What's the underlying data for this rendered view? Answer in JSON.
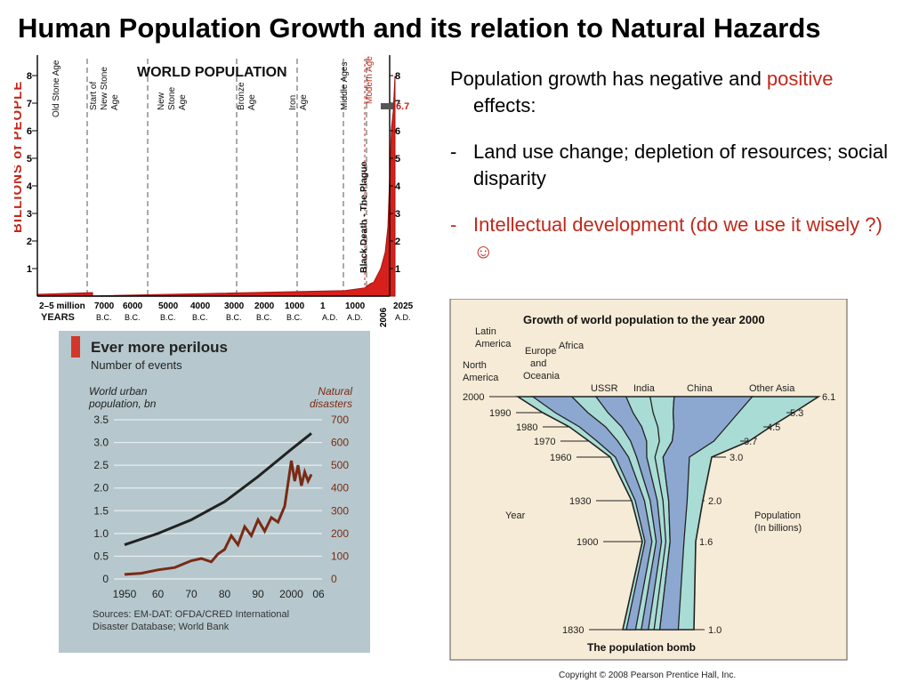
{
  "title": "Human Population Growth and its relation to Natural Hazards",
  "text": {
    "lead_part1": "Population growth has negative and ",
    "lead_part2": "positive",
    "lead_part3": " effects:",
    "item1_dash": "-",
    "item1": "Land use change; depletion of resources; social disparity",
    "item2_dash": "-",
    "item2": "Intellectual development (do we use it wisely ?) ☺"
  },
  "colors": {
    "accent": "#c0281a",
    "chart_red": "#d7201b",
    "cyan": "#a9dcd5",
    "blue": "#8ca8d0"
  },
  "world_population": {
    "title": "WORLD POPULATION",
    "ylabel_left": "BILLIONS of PEOPLE",
    "y_ticks": [
      "8",
      "7",
      "6",
      "5",
      "4",
      "3",
      "2",
      "1"
    ],
    "years_label": "YEARS",
    "eras": [
      {
        "label": "Old Stone Age"
      },
      {
        "label": "Start of New Stone Age"
      },
      {
        "label": "New Stone Age"
      },
      {
        "label": "Bronze Age"
      },
      {
        "label": "Iron Age"
      },
      {
        "label": "Middle Ages"
      },
      {
        "label": "Black Death - The Plague"
      },
      {
        "label": "Modern Age"
      }
    ],
    "x_ticks": [
      {
        "l1": "2–5 million",
        "l2": ""
      },
      {
        "l1": "7000",
        "l2": "B.C."
      },
      {
        "l1": "6000",
        "l2": "B.C."
      },
      {
        "l1": "5000",
        "l2": "B.C."
      },
      {
        "l1": "4000",
        "l2": "B.C."
      },
      {
        "l1": "3000",
        "l2": "B.C."
      },
      {
        "l1": "2000",
        "l2": "B.C."
      },
      {
        "l1": "1000",
        "l2": "B.C."
      },
      {
        "l1": "1",
        "l2": "A.D."
      },
      {
        "l1": "1000",
        "l2": "A.D."
      },
      {
        "l1": "2006",
        "l2": ""
      },
      {
        "l1": "2025",
        "l2": "A.D."
      }
    ],
    "marker_value": "6.7",
    "series": [
      {
        "year": -7000,
        "value": 0.01
      },
      {
        "year": 1,
        "value": 0.2
      },
      {
        "year": 1000,
        "value": 0.3
      },
      {
        "year": 1350,
        "value": 0.45
      },
      {
        "year": 1500,
        "value": 0.5
      },
      {
        "year": 1800,
        "value": 1.0
      },
      {
        "year": 1900,
        "value": 1.6
      },
      {
        "year": 1950,
        "value": 2.5
      },
      {
        "year": 2000,
        "value": 6.1
      },
      {
        "year": 2006,
        "value": 6.7
      },
      {
        "year": 2025,
        "value": 8.0
      }
    ]
  },
  "urban_risk": {
    "title": "Ever more perilous",
    "subtitle": "Number of events",
    "left_label_1": "World urban",
    "left_label_2": "population, bn",
    "right_label_1": "Natural",
    "right_label_2": "disasters",
    "left_ticks": [
      "3.5",
      "3.0",
      "2.5",
      "2.0",
      "1.5",
      "1.0",
      "0.5",
      "0"
    ],
    "right_ticks": [
      "700",
      "600",
      "500",
      "400",
      "300",
      "200",
      "100",
      "0"
    ],
    "x_ticks": [
      "1950",
      "60",
      "70",
      "80",
      "90",
      "2000",
      "06"
    ],
    "source_1": "Sources: EM-DAT: OFDA/CRED International",
    "source_2": "Disaster Database; World Bank",
    "urban_population_bn": [
      {
        "year": 1950,
        "value": 0.75
      },
      {
        "year": 1960,
        "value": 1.0
      },
      {
        "year": 1970,
        "value": 1.3
      },
      {
        "year": 1980,
        "value": 1.7
      },
      {
        "year": 1990,
        "value": 2.25
      },
      {
        "year": 2000,
        "value": 2.85
      },
      {
        "year": 2006,
        "value": 3.2
      }
    ],
    "natural_disasters": [
      {
        "year": 1950,
        "value": 20
      },
      {
        "year": 1955,
        "value": 25
      },
      {
        "year": 1960,
        "value": 40
      },
      {
        "year": 1965,
        "value": 50
      },
      {
        "year": 1970,
        "value": 80
      },
      {
        "year": 1973,
        "value": 90
      },
      {
        "year": 1976,
        "value": 75
      },
      {
        "year": 1978,
        "value": 110
      },
      {
        "year": 1980,
        "value": 130
      },
      {
        "year": 1982,
        "value": 190
      },
      {
        "year": 1984,
        "value": 150
      },
      {
        "year": 1986,
        "value": 230
      },
      {
        "year": 1988,
        "value": 190
      },
      {
        "year": 1990,
        "value": 260
      },
      {
        "year": 1992,
        "value": 210
      },
      {
        "year": 1994,
        "value": 270
      },
      {
        "year": 1996,
        "value": 250
      },
      {
        "year": 1998,
        "value": 320
      },
      {
        "year": 2000,
        "value": 520
      },
      {
        "year": 2001,
        "value": 430
      },
      {
        "year": 2002,
        "value": 500
      },
      {
        "year": 2003,
        "value": 410
      },
      {
        "year": 2004,
        "value": 470
      },
      {
        "year": 2005,
        "value": 430
      },
      {
        "year": 2006,
        "value": 460
      }
    ]
  },
  "population_bomb": {
    "title": "Growth of world population to the year 2000",
    "caption": "The population bomb",
    "regions": [
      "Latin America",
      "Africa",
      "Europe and Oceania",
      "North America",
      "USSR",
      "India",
      "China",
      "Other Asia"
    ],
    "years_axis_label": "Year",
    "pop_axis_label_1": "Population",
    "pop_axis_label_2": "(In billions)",
    "rows": [
      {
        "year": "2000",
        "pop": "6.1"
      },
      {
        "year": "1990",
        "pop": "5.3"
      },
      {
        "year": "1980",
        "pop": "4.5"
      },
      {
        "year": "1970",
        "pop": "3.7"
      },
      {
        "year": "1960",
        "pop": "3.0"
      },
      {
        "year": "1930",
        "pop": "2.0"
      },
      {
        "year": "1900",
        "pop": "1.6"
      },
      {
        "year": "1830",
        "pop": "1.0"
      }
    ],
    "copyright": "Copyright © 2008 Pearson Prentice Hall, Inc."
  }
}
